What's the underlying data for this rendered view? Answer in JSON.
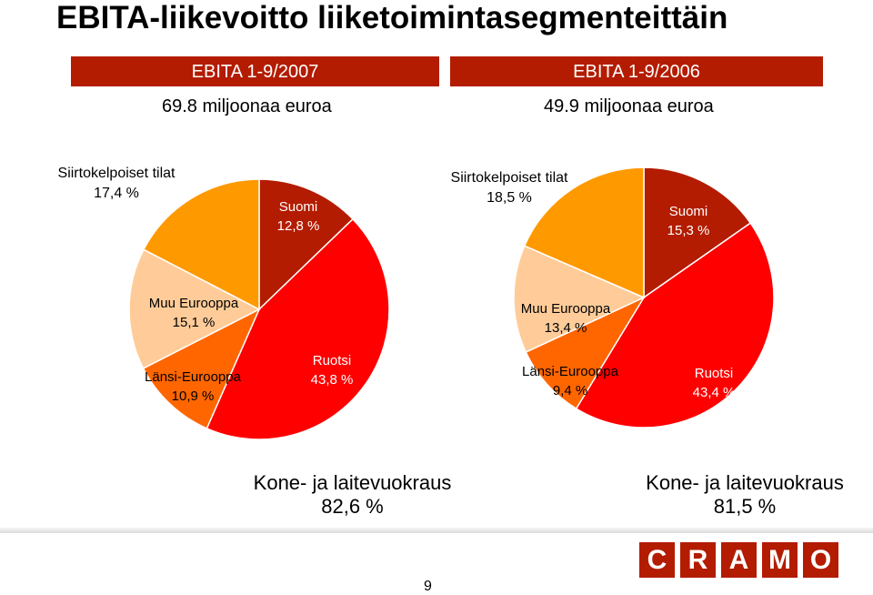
{
  "page": {
    "title": "EBITA-liikevoitto liiketoimintasegmenteittäin",
    "page_number": "9"
  },
  "colors": {
    "header_bar": "#b31c00",
    "suomi": "#b31c00",
    "ruotsi": "#ff0000",
    "lansi_eurooppa": "#ff6600",
    "muu_eurooppa": "#ffcc99",
    "siirtokelpoiset_tilat": "#ff9900"
  },
  "logo": {
    "letters": [
      "C",
      "R",
      "A",
      "M",
      "O"
    ],
    "brand": "CRAMO"
  },
  "chart_data": [
    {
      "type": "pie",
      "title": "EBITA 1-9/2007",
      "subtitle": "69.8 miljoonaa euroa",
      "slices": [
        {
          "label": "Suomi",
          "value_text": "12,8 %",
          "value": 12.8,
          "color": "#b31c00"
        },
        {
          "label": "Ruotsi",
          "value_text": "43,8 %",
          "value": 43.8,
          "color": "#ff0000"
        },
        {
          "label": "Länsi-Eurooppa",
          "value_text": "10,9 %",
          "value": 10.9,
          "color": "#ff6600"
        },
        {
          "label": "Muu Eurooppa",
          "value_text": "15,1 %",
          "value": 15.1,
          "color": "#ffcc99"
        },
        {
          "label": "Siirtokelpoiset tilat",
          "value_text": "17,4 %",
          "value": 17.4,
          "color": "#ff9900"
        }
      ],
      "footer": {
        "label": "Kone- ja laitevuokraus",
        "value_text": "82,6 %"
      }
    },
    {
      "type": "pie",
      "title": "EBITA 1-9/2006",
      "subtitle": "49.9 miljoonaa euroa",
      "slices": [
        {
          "label": "Suomi",
          "value_text": "15,3 %",
          "value": 15.3,
          "color": "#b31c00"
        },
        {
          "label": "Ruotsi",
          "value_text": "43,4 %",
          "value": 43.4,
          "color": "#ff0000"
        },
        {
          "label": "Länsi-Eurooppa",
          "value_text": "9,4 %",
          "value": 9.4,
          "color": "#ff6600"
        },
        {
          "label": "Muu Eurooppa",
          "value_text": "13,4 %",
          "value": 13.4,
          "color": "#ffcc99"
        },
        {
          "label": "Siirtokelpoiset tilat",
          "value_text": "18,5 %",
          "value": 18.5,
          "color": "#ff9900"
        }
      ],
      "footer": {
        "label": "Kone- ja laitevuokraus",
        "value_text": "81,5 %"
      }
    }
  ]
}
